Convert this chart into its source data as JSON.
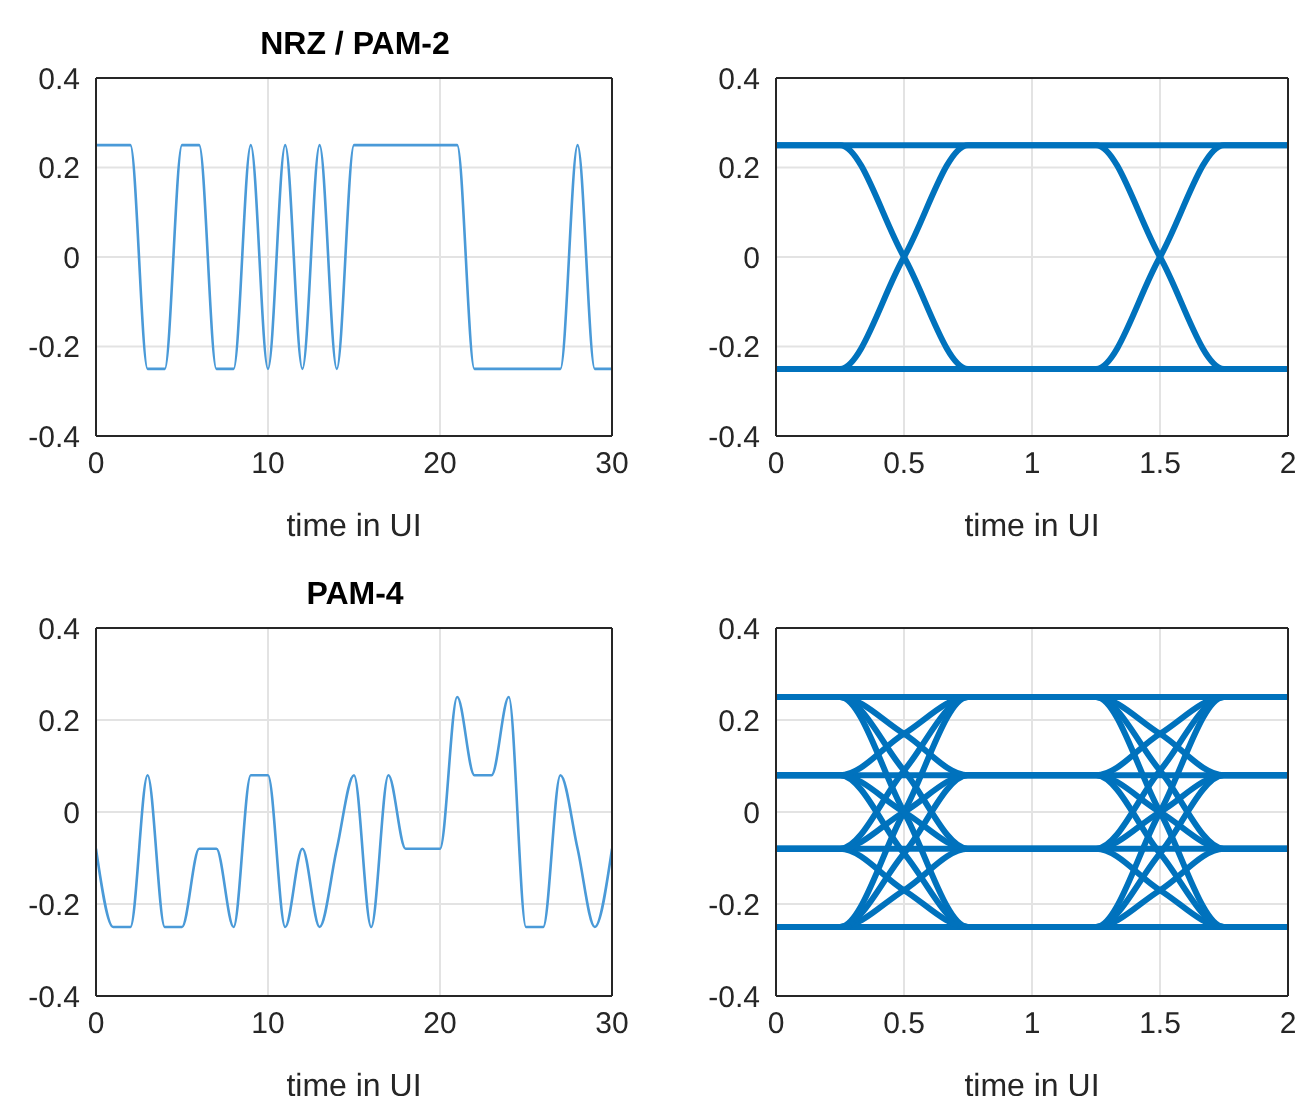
{
  "chart_data": [
    {
      "type": "line",
      "title": "NRZ / PAM-2",
      "xlabel": "time in UI",
      "xlim": [
        0,
        30
      ],
      "xticks": [
        0,
        10,
        20,
        30
      ],
      "ylim": [
        -0.4,
        0.4
      ],
      "yticks": [
        -0.4,
        -0.2,
        0,
        0.2,
        0.4
      ],
      "grid": true,
      "color": "#4a9ad8",
      "series": [
        {
          "x": [
            0,
            2,
            3,
            4,
            5,
            6,
            7,
            8,
            9,
            10,
            11,
            12,
            13,
            14,
            15,
            21,
            22,
            27,
            28,
            29,
            30
          ],
          "values": [
            0.25,
            0.25,
            -0.25,
            -0.25,
            0.25,
            0.25,
            -0.25,
            -0.25,
            0.25,
            -0.25,
            0.25,
            -0.25,
            0.25,
            -0.25,
            0.25,
            0.25,
            -0.25,
            -0.25,
            0.25,
            -0.25,
            -0.25
          ]
        }
      ]
    },
    {
      "type": "line",
      "xlabel": "time in UI",
      "xlim": [
        0,
        2
      ],
      "xticks": [
        0,
        0.5,
        1,
        1.5,
        2
      ],
      "ylim": [
        -0.4,
        0.4
      ],
      "yticks": [
        -0.4,
        -0.2,
        0,
        0.2,
        0.4
      ],
      "grid": true,
      "color": "#0072bd",
      "series": [
        {
          "x": [
            0,
            2
          ],
          "values": [
            0.25,
            0.25
          ]
        },
        {
          "x": [
            0,
            2
          ],
          "values": [
            -0.25,
            -0.25
          ]
        },
        {
          "x": [
            0,
            0.25,
            0.5,
            0.75,
            1
          ],
          "values": [
            0.25,
            0.25,
            0,
            -0.25,
            -0.25
          ]
        },
        {
          "x": [
            0,
            0.25,
            0.5,
            0.75,
            1
          ],
          "values": [
            -0.25,
            -0.25,
            0,
            0.25,
            0.25
          ]
        },
        {
          "x": [
            1,
            1.25,
            1.5,
            1.75,
            2
          ],
          "values": [
            0.25,
            0.25,
            0,
            -0.25,
            -0.25
          ]
        },
        {
          "x": [
            1,
            1.25,
            1.5,
            1.75,
            2
          ],
          "values": [
            -0.25,
            -0.25,
            0,
            0.25,
            0.25
          ]
        }
      ]
    },
    {
      "type": "line",
      "title": "PAM-4",
      "xlabel": "time in UI",
      "xlim": [
        0,
        30
      ],
      "xticks": [
        0,
        10,
        20,
        30
      ],
      "ylim": [
        -0.4,
        0.4
      ],
      "yticks": [
        -0.4,
        -0.2,
        0,
        0.2,
        0.4
      ],
      "grid": true,
      "color": "#4a9ad8",
      "series": [
        {
          "x": [
            0,
            1,
            2,
            3,
            4,
            5,
            6,
            7,
            8,
            9,
            10,
            11,
            12,
            13,
            14,
            15,
            16,
            17,
            18,
            20,
            21,
            22,
            23,
            24,
            25,
            26,
            27,
            28,
            29,
            30
          ],
          "values": [
            -0.08,
            -0.25,
            -0.25,
            0.08,
            -0.25,
            -0.25,
            -0.08,
            -0.08,
            -0.25,
            0.08,
            0.08,
            -0.25,
            -0.08,
            -0.25,
            -0.08,
            0.08,
            -0.25,
            0.08,
            -0.08,
            -0.08,
            0.25,
            0.08,
            0.08,
            0.25,
            -0.25,
            -0.25,
            0.08,
            -0.08,
            -0.25,
            -0.08
          ]
        }
      ]
    },
    {
      "type": "line",
      "xlabel": "time in UI",
      "xlim": [
        0,
        2
      ],
      "xticks": [
        0,
        0.5,
        1,
        1.5,
        2
      ],
      "ylim": [
        -0.4,
        0.4
      ],
      "yticks": [
        -0.4,
        -0.2,
        0,
        0.2,
        0.4
      ],
      "grid": true,
      "color": "#0072bd",
      "series": [
        {
          "x": [
            0,
            2
          ],
          "values": [
            0.25,
            0.25
          ]
        },
        {
          "x": [
            0,
            2
          ],
          "values": [
            0.08,
            0.08
          ]
        },
        {
          "x": [
            0,
            2
          ],
          "values": [
            -0.08,
            -0.08
          ]
        },
        {
          "x": [
            0,
            2
          ],
          "values": [
            -0.25,
            -0.25
          ]
        },
        {
          "x": [
            0,
            0.25,
            0.5,
            0.75,
            1
          ],
          "values": [
            -0.25,
            -0.25,
            -0.17,
            -0.08,
            -0.08
          ]
        },
        {
          "x": [
            0,
            0.25,
            0.5,
            0.75,
            1
          ],
          "values": [
            -0.25,
            -0.25,
            -0.09,
            0.08,
            0.08
          ]
        },
        {
          "x": [
            0,
            0.25,
            0.5,
            0.75,
            1
          ],
          "values": [
            -0.25,
            -0.25,
            0,
            0.25,
            0.25
          ]
        },
        {
          "x": [
            0,
            0.25,
            0.5,
            0.75,
            1
          ],
          "values": [
            -0.08,
            -0.08,
            -0.17,
            -0.25,
            -0.25
          ]
        },
        {
          "x": [
            0,
            0.25,
            0.5,
            0.75,
            1
          ],
          "values": [
            -0.08,
            -0.08,
            0,
            0.08,
            0.08
          ]
        },
        {
          "x": [
            0,
            0.25,
            0.5,
            0.75,
            1
          ],
          "values": [
            -0.08,
            -0.08,
            0.09,
            0.25,
            0.25
          ]
        },
        {
          "x": [
            0,
            0.25,
            0.5,
            0.75,
            1
          ],
          "values": [
            0.08,
            0.08,
            -0.09,
            -0.25,
            -0.25
          ]
        },
        {
          "x": [
            0,
            0.25,
            0.5,
            0.75,
            1
          ],
          "values": [
            0.08,
            0.08,
            0,
            -0.08,
            -0.08
          ]
        },
        {
          "x": [
            0,
            0.25,
            0.5,
            0.75,
            1
          ],
          "values": [
            0.08,
            0.08,
            0.17,
            0.25,
            0.25
          ]
        },
        {
          "x": [
            0,
            0.25,
            0.5,
            0.75,
            1
          ],
          "values": [
            0.25,
            0.25,
            0,
            -0.25,
            -0.25
          ]
        },
        {
          "x": [
            0,
            0.25,
            0.5,
            0.75,
            1
          ],
          "values": [
            0.25,
            0.25,
            0.09,
            -0.08,
            -0.08
          ]
        },
        {
          "x": [
            0,
            0.25,
            0.5,
            0.75,
            1
          ],
          "values": [
            0.25,
            0.25,
            0.17,
            0.08,
            0.08
          ]
        },
        {
          "x": [
            1,
            1.25,
            1.5,
            1.75,
            2
          ],
          "values": [
            -0.25,
            -0.25,
            -0.17,
            -0.08,
            -0.08
          ]
        },
        {
          "x": [
            1,
            1.25,
            1.5,
            1.75,
            2
          ],
          "values": [
            -0.25,
            -0.25,
            -0.09,
            0.08,
            0.08
          ]
        },
        {
          "x": [
            1,
            1.25,
            1.5,
            1.75,
            2
          ],
          "values": [
            -0.25,
            -0.25,
            0,
            0.25,
            0.25
          ]
        },
        {
          "x": [
            1,
            1.25,
            1.5,
            1.75,
            2
          ],
          "values": [
            -0.08,
            -0.08,
            -0.17,
            -0.25,
            -0.25
          ]
        },
        {
          "x": [
            1,
            1.25,
            1.5,
            1.75,
            2
          ],
          "values": [
            -0.08,
            -0.08,
            0,
            0.08,
            0.08
          ]
        },
        {
          "x": [
            1,
            1.25,
            1.5,
            1.75,
            2
          ],
          "values": [
            -0.08,
            -0.08,
            0.09,
            0.25,
            0.25
          ]
        },
        {
          "x": [
            1,
            1.25,
            1.5,
            1.75,
            2
          ],
          "values": [
            0.08,
            0.08,
            -0.09,
            -0.25,
            -0.25
          ]
        },
        {
          "x": [
            1,
            1.25,
            1.5,
            1.75,
            2
          ],
          "values": [
            0.08,
            0.08,
            0,
            -0.08,
            -0.08
          ]
        },
        {
          "x": [
            1,
            1.25,
            1.5,
            1.75,
            2
          ],
          "values": [
            0.08,
            0.08,
            0.17,
            0.25,
            0.25
          ]
        },
        {
          "x": [
            1,
            1.25,
            1.5,
            1.75,
            2
          ],
          "values": [
            0.25,
            0.25,
            0,
            -0.25,
            -0.25
          ]
        },
        {
          "x": [
            1,
            1.25,
            1.5,
            1.75,
            2
          ],
          "values": [
            0.25,
            0.25,
            0.09,
            -0.08,
            -0.08
          ]
        },
        {
          "x": [
            1,
            1.25,
            1.5,
            1.75,
            2
          ],
          "values": [
            0.25,
            0.25,
            0.17,
            0.08,
            0.08
          ]
        }
      ]
    }
  ]
}
